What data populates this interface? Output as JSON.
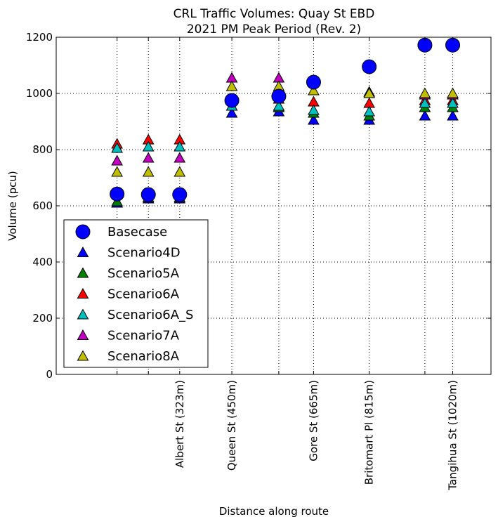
{
  "chart_data": {
    "type": "scatter",
    "title": "CRL Traffic Volumes: Quay St EBD",
    "subtitle": "2021 PM Peak Period (Rev. 2)",
    "xlabel": "Distance along route",
    "ylabel": "Volume (pcu)",
    "ylim": [
      0,
      1200
    ],
    "yticks": [
      0,
      200,
      400,
      600,
      800,
      1000,
      1200
    ],
    "xlim": [
      0,
      1250
    ],
    "x": [
      175,
      265,
      355,
      505,
      640,
      740,
      900,
      1060,
      1140
    ],
    "xtick_labels": [
      {
        "x": 355,
        "label": "Albert St (323m)"
      },
      {
        "x": 505,
        "label": "Queen St (450m)"
      },
      {
        "x": 740,
        "label": "Gore St (665m)"
      },
      {
        "x": 900,
        "label": "Britomart Pl (815m)"
      },
      {
        "x": 1140,
        "label": "Tangihua St (1020m)"
      }
    ],
    "grid": true,
    "legend_position": "lower-left",
    "series": [
      {
        "name": "Basecase",
        "marker": "circle",
        "color": "#0000ff",
        "values": [
          642,
          640,
          640,
          975,
          990,
          1040,
          1095,
          1172,
          1172
        ]
      },
      {
        "name": "Scenario4D",
        "marker": "triangle",
        "color": "#0000ff",
        "values": [
          610,
          625,
          625,
          930,
          935,
          905,
          905,
          920,
          920
        ]
      },
      {
        "name": "Scenario5A",
        "marker": "triangle",
        "color": "#008000",
        "values": [
          615,
          630,
          630,
          955,
          950,
          930,
          920,
          950,
          950
        ]
      },
      {
        "name": "Scenario6A",
        "marker": "triangle",
        "color": "#ff0000",
        "values": [
          820,
          835,
          835,
          980,
          980,
          970,
          965,
          975,
          975
        ]
      },
      {
        "name": "Scenario6A_S",
        "marker": "triangle",
        "color": "#00bfbf",
        "values": [
          805,
          810,
          810,
          955,
          955,
          940,
          935,
          965,
          965
        ]
      },
      {
        "name": "Scenario7A",
        "marker": "triangle",
        "color": "#bf00bf",
        "values": [
          760,
          770,
          770,
          1055,
          1055,
          1040,
          1005,
          995,
          995
        ]
      },
      {
        "name": "Scenario8A",
        "marker": "triangle",
        "color": "#bfbf00",
        "values": [
          720,
          720,
          720,
          1025,
          1025,
          1010,
          1000,
          1000,
          1000
        ]
      }
    ]
  }
}
